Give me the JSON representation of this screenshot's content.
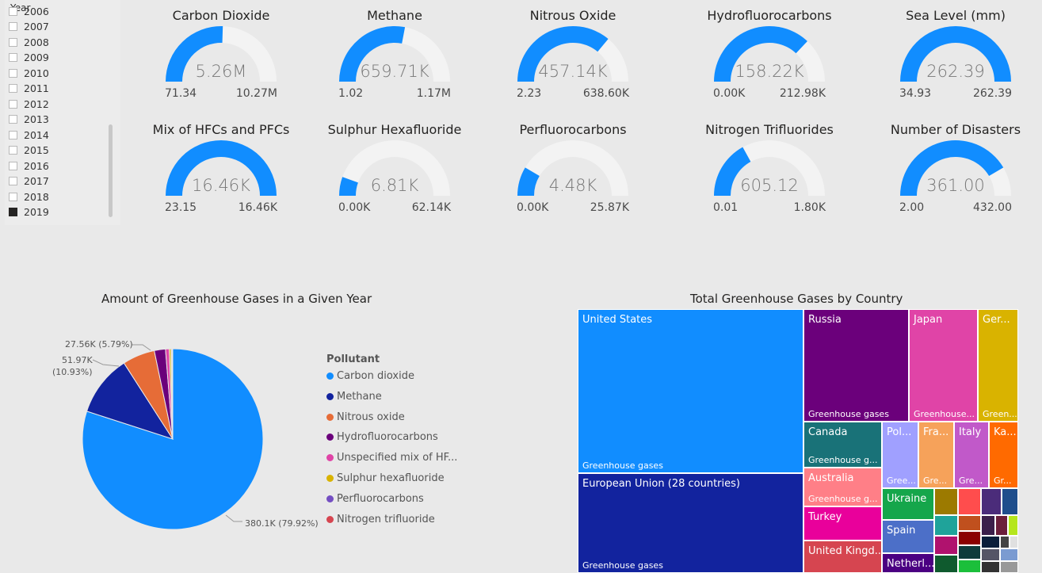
{
  "slicer": {
    "title": "Year",
    "items": [
      {
        "label": "2006",
        "checked": false
      },
      {
        "label": "2007",
        "checked": false
      },
      {
        "label": "2008",
        "checked": false
      },
      {
        "label": "2009",
        "checked": false
      },
      {
        "label": "2010",
        "checked": false
      },
      {
        "label": "2011",
        "checked": false
      },
      {
        "label": "2012",
        "checked": false
      },
      {
        "label": "2013",
        "checked": false
      },
      {
        "label": "2014",
        "checked": false
      },
      {
        "label": "2015",
        "checked": false
      },
      {
        "label": "2016",
        "checked": false
      },
      {
        "label": "2017",
        "checked": false
      },
      {
        "label": "2018",
        "checked": false
      },
      {
        "label": "2019",
        "checked": true
      }
    ]
  },
  "gauges": [
    {
      "title": "Carbon Dioxide",
      "value": "5.26M",
      "min": "71.34",
      "max": "10.27M",
      "fraction": 0.51
    },
    {
      "title": "Methane",
      "value": "659.71K",
      "min": "1.02",
      "max": "1.17M",
      "fraction": 0.56
    },
    {
      "title": "Nitrous Oxide",
      "value": "457.14K",
      "min": "2.23",
      "max": "638.60K",
      "fraction": 0.72
    },
    {
      "title": "Hydrofluorocarbons",
      "value": "158.22K",
      "min": "0.00K",
      "max": "212.98K",
      "fraction": 0.74
    },
    {
      "title": "Sea Level (mm)",
      "value": "262.39",
      "min": "34.93",
      "max": "262.39",
      "fraction": 1.0
    },
    {
      "title": "Mix of HFCs and PFCs",
      "value": "16.46K",
      "min": "23.15",
      "max": "16.46K",
      "fraction": 1.0
    },
    {
      "title": "Sulphur Hexafluoride",
      "value": "6.81K",
      "min": "0.00K",
      "max": "62.14K",
      "fraction": 0.11
    },
    {
      "title": "Perfluorocarbons",
      "value": "4.48K",
      "min": "0.00K",
      "max": "25.87K",
      "fraction": 0.17
    },
    {
      "title": "Nitrogen Trifluorides",
      "value": "605.12",
      "min": "0.01",
      "max": "1.80K",
      "fraction": 0.34
    },
    {
      "title": "Number of Disasters",
      "value": "361.00",
      "min": "2.00",
      "max": "432.00",
      "fraction": 0.83
    }
  ],
  "pie": {
    "title": "Amount of Greenhouse Gases in a Given Year",
    "legend_title": "Pollutant",
    "labels": [
      {
        "text": "27.56K (5.79%)"
      },
      {
        "text": "51.97K"
      },
      {
        "text": "(10.93%)"
      },
      {
        "text": "380.1K (79.92%)"
      }
    ]
  },
  "chart_data": {
    "type": "pie",
    "title": "Amount of Greenhouse Gases in a Given Year",
    "legend_title": "Pollutant",
    "categories": [
      "Carbon dioxide",
      "Methane",
      "Nitrous oxide",
      "Hydrofluorocarbons",
      "Unspecified mix of HF...",
      "Sulphur hexafluoride",
      "Perfluorocarbons",
      "Nitrogen trifluoride"
    ],
    "values": [
      380100,
      51970,
      27560,
      9500,
      3200,
      1500,
      800,
      600
    ],
    "percent": [
      79.92,
      10.93,
      5.79,
      2.0,
      0.67,
      0.32,
      0.17,
      0.13
    ],
    "colors": [
      "#118DFF",
      "#12239E",
      "#E66C37",
      "#6B007B",
      "#E044A7",
      "#D9B300",
      "#744EC2",
      "#D64550"
    ]
  },
  "treemap": {
    "title": "Total Greenhouse Gases by Country",
    "tiles": [
      {
        "name": "United States",
        "sub": "Greenhouse gases",
        "color": "#118DFF"
      },
      {
        "name": "European Union (28 countries)",
        "sub": "Greenhouse gases",
        "color": "#12239E"
      },
      {
        "name": "Russia",
        "sub": "Greenhouse gases",
        "color": "#6B007B"
      },
      {
        "name": "Japan",
        "sub": "Greenhouse...",
        "color": "#E044A7"
      },
      {
        "name": "Ger...",
        "sub": "Green...",
        "color": "#D9B300"
      },
      {
        "name": "Canada",
        "sub": "Greenhouse g...",
        "color": "#197278"
      },
      {
        "name": "Pol...",
        "sub": "Gree...",
        "color": "#A0A0FF"
      },
      {
        "name": "Fra...",
        "sub": "Gre...",
        "color": "#F6A25A"
      },
      {
        "name": "Italy",
        "sub": "Gre...",
        "color": "#C159C9"
      },
      {
        "name": "Ka...",
        "sub": "Gr...",
        "color": "#FF6A00"
      },
      {
        "name": "Australia",
        "sub": "Greenhouse g...",
        "color": "#FF7F87"
      },
      {
        "name": "Turkey",
        "sub": "",
        "color": "#E9009B"
      },
      {
        "name": "United Kingd...",
        "sub": "",
        "color": "#D64550"
      },
      {
        "name": "Ukraine",
        "sub": "",
        "color": "#15A64B"
      },
      {
        "name": "Spain",
        "sub": "",
        "color": "#4C6FC8"
      },
      {
        "name": "Netherl...",
        "sub": "",
        "color": "#4B0082"
      }
    ]
  }
}
